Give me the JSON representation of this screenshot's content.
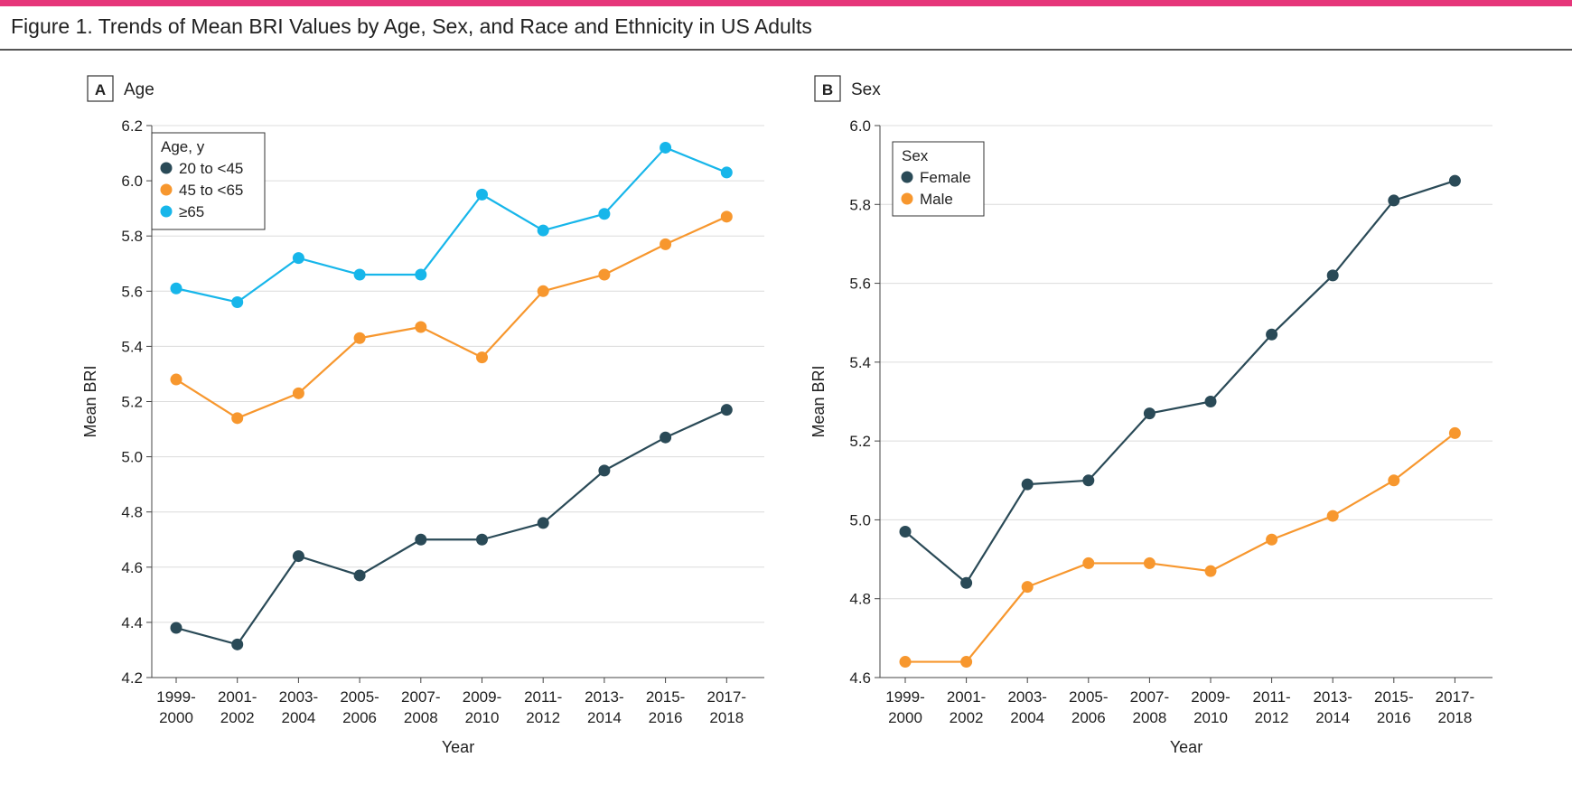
{
  "figure_title": "Figure 1. Trends of Mean BRI Values by Age, Sex, and Race and Ethnicity in US Adults",
  "colors": {
    "accent": "#e6367a",
    "dark": "#2a4a57",
    "orange": "#f7972e",
    "cyan": "#17b6ea",
    "grid": "#dcdcdc"
  },
  "chart_data": [
    {
      "type": "line",
      "panel_letter": "A",
      "panel_title": "Age",
      "xlabel": "Year",
      "ylabel": "Mean BRI",
      "ylim": [
        4.2,
        6.2
      ],
      "yticks": [
        "4.2",
        "4.4",
        "4.6",
        "4.8",
        "5.0",
        "5.2",
        "5.4",
        "5.6",
        "5.8",
        "6.0",
        "6.2"
      ],
      "categories": [
        [
          "1999-",
          "2000"
        ],
        [
          "2001-",
          "2002"
        ],
        [
          "2003-",
          "2004"
        ],
        [
          "2005-",
          "2006"
        ],
        [
          "2007-",
          "2008"
        ],
        [
          "2009-",
          "2010"
        ],
        [
          "2011-",
          "2012"
        ],
        [
          "2013-",
          "2014"
        ],
        [
          "2015-",
          "2016"
        ],
        [
          "2017-",
          "2018"
        ]
      ],
      "legend_title": "Age, y",
      "legend_position": "top-left",
      "grid": true,
      "series": [
        {
          "name": "20 to <45",
          "color": "#2a4a57",
          "values": [
            4.38,
            4.32,
            4.64,
            4.57,
            4.7,
            4.7,
            4.76,
            4.95,
            5.07,
            5.17
          ]
        },
        {
          "name": "45 to <65",
          "color": "#f7972e",
          "values": [
            5.28,
            5.14,
            5.23,
            5.43,
            5.47,
            5.36,
            5.6,
            5.66,
            5.77,
            5.87
          ]
        },
        {
          "name": "≥65",
          "color": "#17b6ea",
          "values": [
            5.61,
            5.56,
            5.72,
            5.66,
            5.66,
            5.95,
            5.82,
            5.88,
            6.12,
            6.03
          ]
        }
      ]
    },
    {
      "type": "line",
      "panel_letter": "B",
      "panel_title": "Sex",
      "xlabel": "Year",
      "ylabel": "Mean BRI",
      "ylim": [
        4.6,
        6.0
      ],
      "yticks": [
        "4.6",
        "4.8",
        "5.0",
        "5.2",
        "5.4",
        "5.6",
        "5.8",
        "6.0"
      ],
      "categories": [
        [
          "1999-",
          "2000"
        ],
        [
          "2001-",
          "2002"
        ],
        [
          "2003-",
          "2004"
        ],
        [
          "2005-",
          "2006"
        ],
        [
          "2007-",
          "2008"
        ],
        [
          "2009-",
          "2010"
        ],
        [
          "2011-",
          "2012"
        ],
        [
          "2013-",
          "2014"
        ],
        [
          "2015-",
          "2016"
        ],
        [
          "2017-",
          "2018"
        ]
      ],
      "legend_title": "Sex",
      "legend_position": "top-left",
      "grid": true,
      "series": [
        {
          "name": "Female",
          "color": "#2a4a57",
          "values": [
            4.97,
            4.84,
            5.09,
            5.1,
            5.27,
            5.3,
            5.47,
            5.62,
            5.81,
            5.86
          ]
        },
        {
          "name": "Male",
          "color": "#f7972e",
          "values": [
            4.64,
            4.64,
            4.83,
            4.89,
            4.89,
            4.87,
            4.95,
            5.01,
            5.1,
            5.22
          ]
        }
      ]
    }
  ]
}
